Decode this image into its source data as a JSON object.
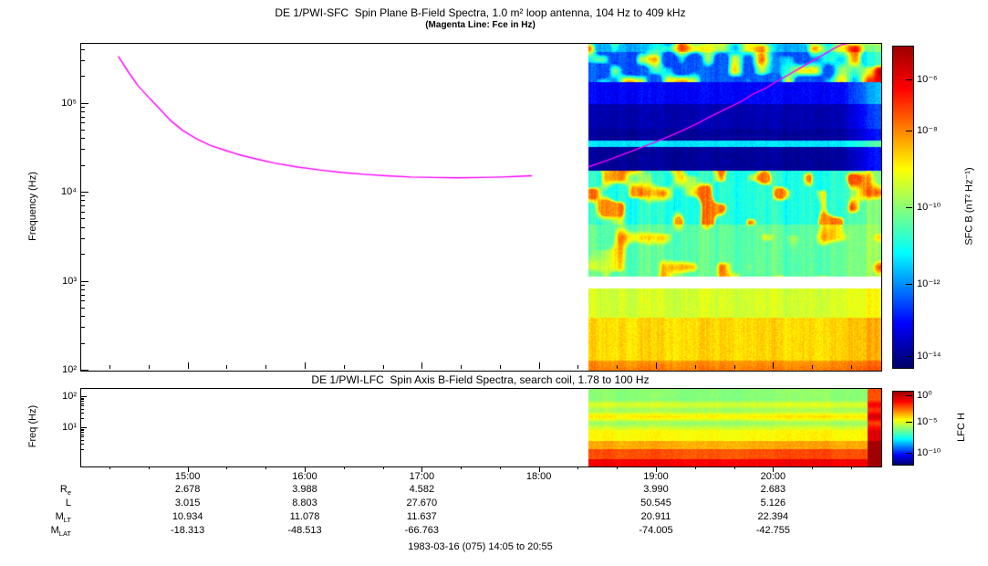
{
  "chart_data": [
    {
      "type": "heatmap",
      "id": "sfc",
      "title": "DE 1/PWI-SFC  Spin Plane B-Field Spectra, 1.0 m² loop antenna, 104 Hz to 409 kHz",
      "subtitle": "(Magenta Line: Fce in Hz)",
      "ylabel": "Frequency (Hz)",
      "ylog": true,
      "ylim": [
        100,
        470000
      ],
      "ytick_labels": [
        "10⁵",
        "10⁴",
        "10³",
        "10²"
      ],
      "ytick_values": [
        100000,
        10000,
        1000,
        100
      ],
      "colorbar": {
        "label": "SFC B (nT² Hz⁻¹)",
        "tick_labels": [
          "10⁻⁶",
          "10⁻⁸",
          "10⁻¹⁰",
          "10⁻¹²",
          "10⁻¹⁴"
        ]
      },
      "data_coverage": {
        "start": "18:25",
        "end": "20:55",
        "left_region": "no data (white)"
      },
      "bands": [
        {
          "f_range_hz": [
            100,
            420
          ],
          "appearance": "intense yellow-orange"
        },
        {
          "f_range_hz": [
            420,
            850
          ],
          "appearance": "yellow-green"
        },
        {
          "f_range_hz": [
            850,
            1150
          ],
          "appearance": "white horizontal data gap"
        },
        {
          "f_range_hz": [
            1150,
            4500
          ],
          "appearance": "green, vertical striations"
        },
        {
          "f_range_hz": [
            4500,
            18000
          ],
          "appearance": "cyan-green, yellow bursts 19:30-20:10"
        },
        {
          "f_range_hz": [
            18000,
            52000
          ],
          "appearance": "dark blue with bright cyan line near 35 kHz"
        },
        {
          "f_range_hz": [
            52000,
            180000
          ],
          "appearance": "blue"
        },
        {
          "f_range_hz": [
            180000,
            470000
          ],
          "appearance": "blue with green emission patches"
        }
      ],
      "fce_line": {
        "color": "#ff00ff",
        "label": "Fce",
        "segments": [
          [
            [
              "14:24",
              340000
            ],
            [
              "14:29",
              230000
            ],
            [
              "14:34",
              160000
            ],
            [
              "14:40",
              115000
            ],
            [
              "14:46",
              84000
            ],
            [
              "14:51",
              64000
            ],
            [
              "14:57",
              50000
            ],
            [
              "15:04",
              40500
            ],
            [
              "15:11",
              34000
            ],
            [
              "15:19",
              29800
            ],
            [
              "15:25",
              27000
            ],
            [
              "15:35",
              23800
            ],
            [
              "15:44",
              21500
            ],
            [
              "15:56",
              19400
            ],
            [
              "16:08",
              17900
            ],
            [
              "16:19",
              16800
            ],
            [
              "16:31",
              16000
            ],
            [
              "16:43",
              15400
            ],
            [
              "16:54",
              15000
            ],
            [
              "17:05",
              14800
            ],
            [
              "17:18",
              14700
            ],
            [
              "17:30",
              14800
            ],
            [
              "17:41",
              15000
            ],
            [
              "17:48",
              15200
            ],
            [
              "17:56",
              15500
            ]
          ],
          [
            [
              "18:25",
              19500
            ],
            [
              "18:32",
              22000
            ],
            [
              "18:39",
              25000
            ],
            [
              "18:45",
              28000
            ],
            [
              "18:51",
              31500
            ],
            [
              "18:57",
              35500
            ],
            [
              "19:03",
              40000
            ],
            [
              "19:09",
              45500
            ],
            [
              "19:15",
              52000
            ],
            [
              "19:21",
              60000
            ],
            [
              "19:26",
              69000
            ],
            [
              "19:32",
              80000
            ],
            [
              "19:38",
              93000
            ],
            [
              "19:44",
              108000
            ],
            [
              "19:49",
              127000
            ],
            [
              "19:56",
              150000
            ],
            [
              "20:01",
              176000
            ],
            [
              "20:07",
              208000
            ],
            [
              "20:13",
              247000
            ],
            [
              "20:19",
              295000
            ],
            [
              "20:25",
              350000
            ],
            [
              "20:30",
              408000
            ],
            [
              "20:35",
              462000
            ],
            [
              "20:41",
              485000
            ]
          ]
        ]
      }
    },
    {
      "type": "heatmap",
      "id": "lfc",
      "title": "DE 1/PWI-LFC  Spin Axis B-Field Spectra, search coil, 1.78 to 100 Hz",
      "ylabel": "Freq (Hz)",
      "ylog": true,
      "ylim": [
        1.78,
        100
      ],
      "ytick_labels": [
        "10²",
        "10¹"
      ],
      "ytick_values": [
        100,
        10
      ],
      "colorbar": {
        "label": "LFC H",
        "tick_labels": [
          "10⁰",
          "10⁻⁵",
          "10⁻¹⁰"
        ]
      },
      "data_coverage": {
        "start": "18:25",
        "end": "20:55",
        "left_region": "no data (white)"
      },
      "bands": [
        {
          "region": "bottom quarter",
          "appearance": "red-orange"
        },
        {
          "region": "middle",
          "appearance": "yellow-green horizontal stripes"
        },
        {
          "region": "top",
          "appearance": "green"
        },
        {
          "region": "right edge after 20:50",
          "appearance": "red column"
        }
      ]
    }
  ],
  "time_axis": {
    "start": "14:05",
    "end": "20:55",
    "data_start": "18:25",
    "tick_labels": [
      "15:00",
      "16:00",
      "17:00",
      "18:00",
      "19:00",
      "20:00"
    ]
  },
  "ephemeris": {
    "rows": [
      {
        "label_main": "R",
        "label_sub": "e",
        "values": [
          "2.678",
          "3.988",
          "4.582",
          "",
          "3.990",
          "2.683"
        ]
      },
      {
        "label_main": "L",
        "label_sub": "",
        "values": [
          "3.015",
          "8.803",
          "27.670",
          "",
          "50.545",
          "5.126"
        ]
      },
      {
        "label_main": "M",
        "label_sub": "LT",
        "values": [
          "10.934",
          "11.078",
          "11.637",
          "",
          "20.911",
          "22.394"
        ]
      },
      {
        "label_main": "M",
        "label_sub": "LAT",
        "values": [
          "-18.313",
          "-48.513",
          "-66.763",
          "",
          "-74.005",
          "-42.755"
        ]
      }
    ]
  },
  "footer": "1983-03-16 (075) 14:05 to 20:55",
  "colors": {
    "fce_line": "#ff00ff",
    "background": "#ffffff",
    "frame": "#000000"
  }
}
